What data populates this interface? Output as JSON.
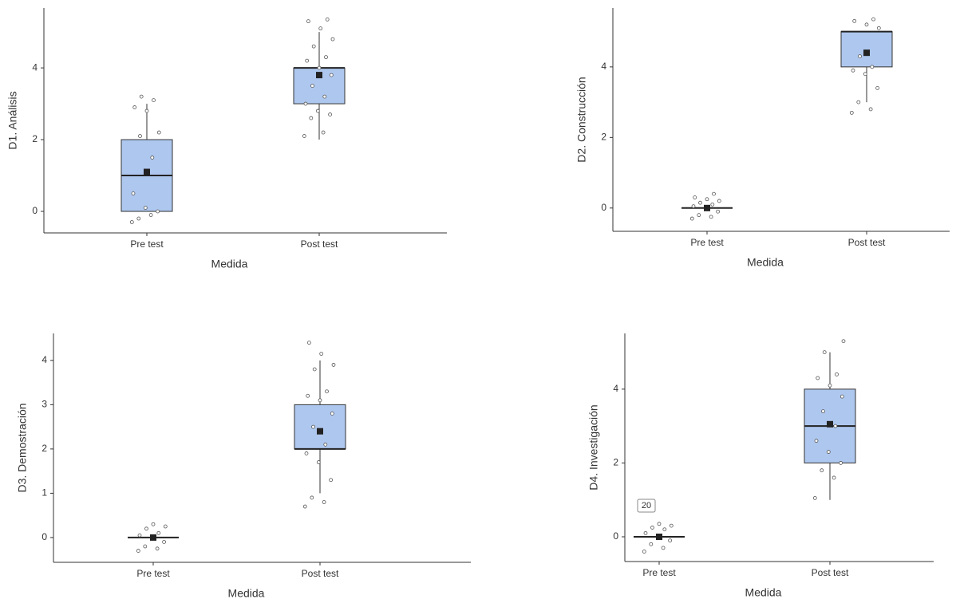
{
  "chart_data": [
    {
      "type": "box",
      "y_label": "D1. Análisis",
      "x_label": "Medida",
      "categories": [
        "Pre test",
        "Post test"
      ],
      "color": "#aec7ee",
      "boxes": [
        {
          "min": 0,
          "q1": 0,
          "median": 1,
          "q3": 2,
          "max": 3,
          "mean": 1.1,
          "points": [
            -0.3,
            -0.1,
            -0.2,
            0,
            0.1,
            0.5,
            1.5,
            2.1,
            2.2,
            2.8,
            2.9,
            3.1,
            3.2
          ]
        },
        {
          "min": 2,
          "q1": 3,
          "median": 4,
          "q3": 4,
          "max": 5,
          "mean": 3.8,
          "points": [
            2.1,
            2.2,
            2.6,
            2.7,
            2.8,
            3.0,
            3.2,
            3.5,
            3.8,
            4.0,
            4.2,
            4.3,
            4.6,
            4.8,
            5.1,
            5.3,
            5.35
          ]
        }
      ],
      "ylim": [
        -0.6,
        5.67
      ],
      "yticks": [
        0,
        2,
        4
      ]
    },
    {
      "type": "box",
      "y_label": "D2. Construcción",
      "x_label": "Medida",
      "categories": [
        "Pre test",
        "Post test"
      ],
      "color": "#aec7ee",
      "boxes": [
        {
          "min": 0,
          "q1": 0,
          "median": 0,
          "q3": 0,
          "max": 0,
          "mean": 0,
          "points": [
            -0.3,
            -0.25,
            -0.2,
            -0.1,
            0,
            0.05,
            0.1,
            0.15,
            0.2,
            0.25,
            0.3,
            0.4
          ]
        },
        {
          "min": 3,
          "q1": 4,
          "median": 5,
          "q3": 5,
          "max": 5,
          "mean": 4.4,
          "points": [
            2.7,
            2.8,
            3.0,
            3.4,
            3.8,
            3.9,
            4.0,
            4.3,
            5.1,
            5.2,
            5.3,
            5.35
          ]
        }
      ],
      "ylim": [
        -0.66,
        5.67
      ],
      "yticks": [
        0,
        2,
        4
      ]
    },
    {
      "type": "box",
      "y_label": "D3. Demostración",
      "x_label": "Medida",
      "categories": [
        "Pre test",
        "Post test"
      ],
      "color": "#aec7ee",
      "boxes": [
        {
          "min": 0,
          "q1": 0,
          "median": 0,
          "q3": 0,
          "max": 0,
          "mean": 0,
          "points": [
            -0.3,
            -0.25,
            -0.2,
            -0.1,
            0,
            0.05,
            0.1,
            0.2,
            0.25,
            0.3
          ]
        },
        {
          "min": 1,
          "q1": 2,
          "median": 2,
          "q3": 3,
          "max": 4,
          "mean": 2.4,
          "points": [
            0.7,
            0.8,
            0.9,
            1.3,
            1.7,
            1.9,
            2.1,
            2.5,
            2.8,
            3.1,
            3.2,
            3.3,
            3.8,
            3.9,
            4.15,
            4.4
          ]
        }
      ],
      "ylim": [
        -0.56,
        4.61
      ],
      "yticks": [
        0,
        1,
        2,
        3,
        4
      ]
    },
    {
      "type": "box",
      "y_label": "D4. Investigación",
      "x_label": "Medida",
      "categories": [
        "Pre test",
        "Post test"
      ],
      "color": "#aec7ee",
      "annotation": "20",
      "boxes": [
        {
          "min": 0,
          "q1": 0,
          "median": 0,
          "q3": 0,
          "max": 0,
          "mean": 0,
          "points": [
            -0.4,
            -0.3,
            -0.2,
            -0.1,
            0,
            0.1,
            0.2,
            0.25,
            0.3,
            0.35
          ]
        },
        {
          "min": 1,
          "q1": 2,
          "median": 3,
          "q3": 4,
          "max": 5,
          "mean": 3.05,
          "points": [
            1.05,
            1.6,
            1.8,
            2.0,
            2.3,
            2.6,
            3.0,
            3.4,
            3.8,
            4.1,
            4.3,
            4.4,
            5.0,
            5.3
          ]
        }
      ],
      "ylim": [
        -0.67,
        5.51
      ],
      "yticks": [
        0,
        2,
        4
      ]
    }
  ]
}
